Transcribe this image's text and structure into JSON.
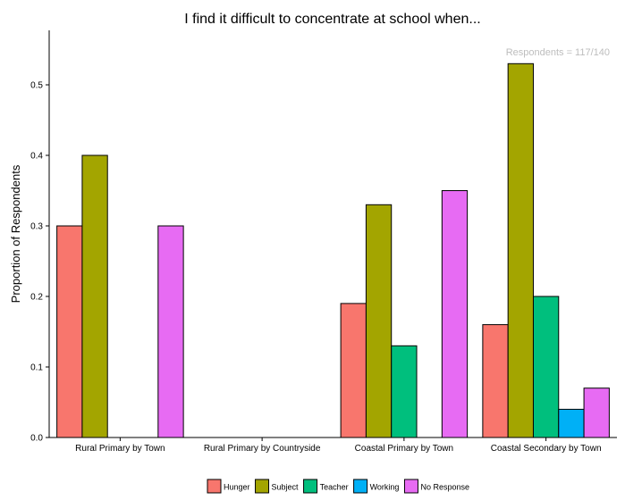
{
  "chart_data": {
    "type": "bar",
    "title": "I find it difficult to concentrate at school when...",
    "annotation": "Respondents = 117/140",
    "xlabel": "",
    "ylabel": "Proportion of Respondents",
    "ylim": [
      0,
      0.55
    ],
    "yticks": [
      "0.0",
      "0.1",
      "0.2",
      "0.3",
      "0.4",
      "0.5"
    ],
    "grid": false,
    "legend_position": "bottom",
    "categories": [
      "Rural Primary by Town",
      "Rural Primary by Countryside",
      "Coastal Primary by Town",
      "Coastal Secondary by Town"
    ],
    "series": [
      {
        "name": "Hunger",
        "color": "#F8766D",
        "values": [
          0.3,
          null,
          0.19,
          0.16
        ]
      },
      {
        "name": "Subject",
        "color": "#A3A500",
        "values": [
          0.4,
          null,
          0.33,
          0.53
        ]
      },
      {
        "name": "Teacher",
        "color": "#00BF7D",
        "values": [
          null,
          null,
          0.13,
          0.2
        ]
      },
      {
        "name": "Working",
        "color": "#00B0F6",
        "values": [
          null,
          null,
          null,
          0.04
        ]
      },
      {
        "name": "No Response",
        "color": "#E76BF3",
        "values": [
          0.3,
          null,
          0.35,
          0.07
        ]
      }
    ]
  }
}
